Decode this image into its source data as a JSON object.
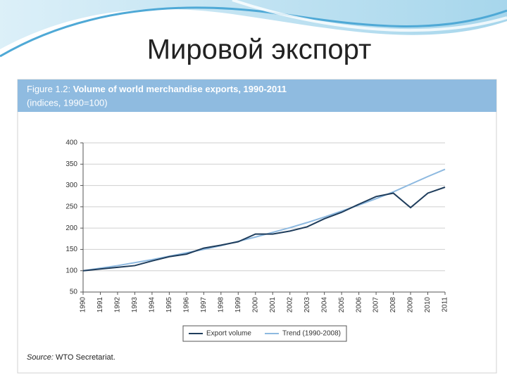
{
  "slide_title": "Мировой экспорт",
  "chart_data": {
    "type": "line",
    "figure_label": "Figure 1.2:",
    "title": "Volume of world merchandise exports, 1990-2011",
    "subtitle": "(indices, 1990=100)",
    "x": [
      1990,
      1991,
      1992,
      1993,
      1994,
      1995,
      1996,
      1997,
      1998,
      1999,
      2000,
      2001,
      2002,
      2003,
      2004,
      2005,
      2006,
      2007,
      2008,
      2009,
      2010,
      2011
    ],
    "xlim": [
      1990,
      2011
    ],
    "xticks": [
      1990,
      1991,
      1992,
      1993,
      1994,
      1995,
      1996,
      1997,
      1998,
      1999,
      2000,
      2001,
      2002,
      2003,
      2004,
      2005,
      2006,
      2007,
      2008,
      2009,
      2010,
      2011
    ],
    "ylim": [
      50,
      400
    ],
    "yticks": [
      50,
      100,
      150,
      200,
      250,
      300,
      350,
      400
    ],
    "grid": true,
    "series": [
      {
        "name": "Export volume",
        "color": "#1f3d5c",
        "values": [
          100,
          104,
          108,
          112,
          123,
          133,
          139,
          153,
          160,
          168,
          186,
          186,
          193,
          203,
          222,
          237,
          256,
          274,
          282,
          248,
          282,
          296
        ]
      },
      {
        "name": "Trend (1990-2008)",
        "color": "#8db9e0",
        "values": [
          100,
          106,
          112,
          119,
          126,
          134,
          142,
          150,
          159,
          169,
          179,
          190,
          201,
          213,
          226,
          240,
          254,
          269,
          285,
          303,
          321,
          338
        ]
      }
    ],
    "source_label": "Source:",
    "source": "WTO Secretariat."
  }
}
